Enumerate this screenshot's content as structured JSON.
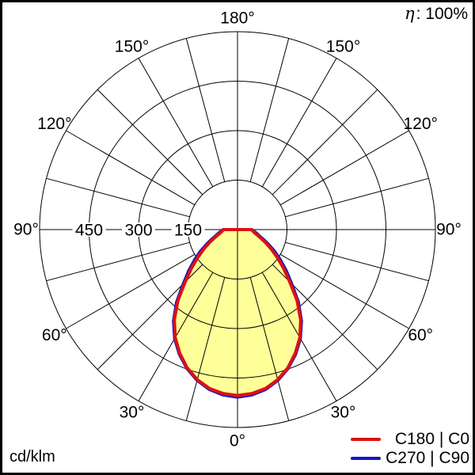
{
  "header": {
    "efficiency_symbol": "η",
    "efficiency_text": ": 100%"
  },
  "footer": {
    "units": "cd/klm"
  },
  "legend": [
    {
      "label": "C180 | C0",
      "color": "#dd1111"
    },
    {
      "label": "C270 | C90",
      "color": "#1616c8"
    }
  ],
  "chart_data": {
    "type": "polar_intensity_distribution",
    "title": "",
    "units": "cd/klm",
    "efficiency": "η: 100%",
    "zero_direction": "down",
    "fill_color": "#ffff99",
    "grid_color": "#000000",
    "grid": {
      "r_max": 600,
      "radial_ticks": [
        150,
        300,
        450
      ],
      "radial_tick_labels": [
        "150",
        "300",
        "450"
      ],
      "angle_step_deg": 15,
      "angle_label_step_deg": 30,
      "angle_labels": [
        "0°",
        "30°",
        "60°",
        "90°",
        "120°",
        "150°",
        "180°"
      ],
      "legend_position": "bottom-right"
    },
    "series": [
      {
        "name": "C180 | C0",
        "color": "#dd1111",
        "symmetric": true,
        "angles_deg": [
          0,
          5,
          10,
          15,
          20,
          25,
          30,
          35,
          40,
          45,
          50,
          55,
          60,
          65,
          70,
          75,
          80,
          85,
          90
        ],
        "values": [
          503,
          499,
          489,
          471,
          446,
          414,
          378,
          334,
          281,
          224,
          182,
          147,
          118,
          94,
          75,
          61,
          52,
          46,
          43
        ]
      },
      {
        "name": "C270 | C90",
        "color": "#1616c8",
        "symmetric": true,
        "angles_deg": [
          0,
          5,
          10,
          15,
          20,
          25,
          30,
          35,
          40,
          45,
          50,
          55,
          60,
          65,
          70,
          75,
          80,
          85,
          90
        ],
        "values": [
          508,
          503,
          492,
          473,
          448,
          417,
          381,
          338,
          287,
          232,
          192,
          158,
          128,
          102,
          81,
          66,
          57,
          49,
          43
        ]
      }
    ]
  }
}
